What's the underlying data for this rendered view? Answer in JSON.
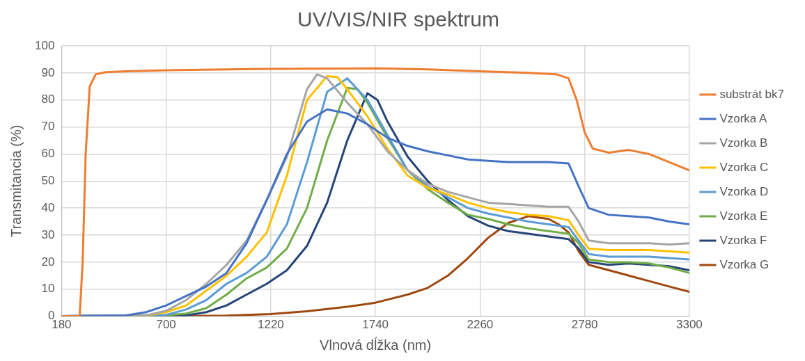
{
  "chart_data": {
    "type": "line",
    "title": "UV/VIS/NIR spektrum",
    "xlabel": "Vlnová dĺžka (nm)",
    "ylabel": "Transmitancia (%)",
    "xlim": [
      180,
      3300
    ],
    "xticks": [
      180,
      700,
      1220,
      1740,
      2260,
      2780,
      3300
    ],
    "ylim": [
      0,
      100
    ],
    "yticks": [
      0,
      10,
      20,
      30,
      40,
      50,
      60,
      70,
      80,
      90,
      100
    ],
    "grid": true,
    "legend": "right",
    "marker": "none",
    "line_style": "solid",
    "series": [
      {
        "name": "substrát bk7",
        "color": "#ed7d31",
        "x": [
          180,
          270,
          285,
          300,
          320,
          350,
          400,
          500,
          700,
          1200,
          1740,
          2000,
          2260,
          2500,
          2640,
          2700,
          2740,
          2780,
          2820,
          2900,
          3000,
          3100,
          3200,
          3300
        ],
        "values": [
          0,
          0,
          20,
          60,
          85,
          89.5,
          90.3,
          90.6,
          91,
          91.5,
          91.7,
          91.3,
          90.6,
          90,
          89.5,
          88,
          80,
          68,
          62,
          60.5,
          61.5,
          60,
          57,
          54
        ]
      },
      {
        "name": "Vzorka A",
        "color": "#4472c4",
        "x": [
          180,
          500,
          600,
          700,
          800,
          900,
          1000,
          1100,
          1200,
          1300,
          1400,
          1500,
          1600,
          1700,
          1800,
          1900,
          2000,
          2100,
          2200,
          2300,
          2400,
          2500,
          2600,
          2700,
          2750,
          2800,
          2900,
          3000,
          3100,
          3200,
          3300
        ],
        "values": [
          0,
          0.3,
          1.5,
          4,
          7.5,
          11,
          16,
          27,
          43,
          60,
          72,
          76.5,
          75,
          71,
          66,
          63,
          61,
          59.5,
          58,
          57.5,
          57,
          57,
          57,
          56.5,
          48,
          40,
          37.5,
          37,
          36.5,
          35,
          34
        ]
      },
      {
        "name": "Vzorka B",
        "color": "#a5a5a5",
        "x": [
          180,
          600,
          700,
          800,
          900,
          1000,
          1100,
          1200,
          1300,
          1400,
          1450,
          1500,
          1600,
          1700,
          1800,
          1900,
          2000,
          2100,
          2200,
          2300,
          2400,
          2500,
          2600,
          2700,
          2750,
          2800,
          2900,
          3000,
          3100,
          3200,
          3300
        ],
        "values": [
          0,
          0.3,
          2,
          6,
          12,
          19,
          28,
          43,
          59,
          84,
          89.5,
          88,
          79,
          71,
          61,
          54,
          49,
          46,
          44,
          42,
          41.5,
          41,
          40.5,
          40.5,
          35,
          28,
          27,
          27,
          27,
          26.5,
          27
        ]
      },
      {
        "name": "Vzorka C",
        "color": "#ffc000",
        "x": [
          180,
          600,
          700,
          800,
          900,
          1000,
          1100,
          1200,
          1300,
          1400,
          1500,
          1550,
          1600,
          1700,
          1800,
          1900,
          2000,
          2100,
          2200,
          2300,
          2400,
          2500,
          2600,
          2700,
          2750,
          2800,
          2900,
          3000,
          3100,
          3200,
          3300
        ],
        "values": [
          0,
          0.2,
          1.5,
          4,
          9.5,
          15,
          22,
          31,
          52,
          80,
          88.8,
          88.5,
          84,
          74,
          62,
          52,
          47.5,
          45,
          42,
          40,
          38.5,
          37.5,
          37,
          35.5,
          30,
          25,
          24.5,
          24.5,
          24.5,
          24,
          23.5
        ]
      },
      {
        "name": "Vzorka D",
        "color": "#5b9bd5",
        "x": [
          180,
          700,
          800,
          900,
          1000,
          1100,
          1200,
          1300,
          1400,
          1500,
          1600,
          1700,
          1800,
          1900,
          2000,
          2100,
          2200,
          2300,
          2400,
          2500,
          2600,
          2700,
          2750,
          2800,
          2900,
          3000,
          3100,
          3200,
          3300
        ],
        "values": [
          0,
          0.5,
          2.5,
          6,
          12,
          16,
          22,
          34,
          57,
          83,
          88,
          80,
          67,
          54,
          48,
          44,
          40,
          38,
          36.5,
          35,
          34,
          33,
          28,
          23,
          22,
          22,
          22,
          21.5,
          21
        ]
      },
      {
        "name": "Vzorka E",
        "color": "#70ad47",
        "x": [
          180,
          700,
          800,
          900,
          1000,
          1100,
          1200,
          1300,
          1400,
          1500,
          1600,
          1650,
          1700,
          1800,
          1900,
          2000,
          2100,
          2200,
          2300,
          2400,
          2500,
          2600,
          2700,
          2750,
          2800,
          2900,
          3000,
          3100,
          3200,
          3300
        ],
        "values": [
          0,
          0.3,
          1,
          3,
          8,
          14,
          18,
          25,
          40,
          65,
          84.5,
          84,
          79,
          66,
          54,
          47,
          42,
          37.5,
          36,
          34,
          32.5,
          31.5,
          30.5,
          27,
          21,
          20,
          20,
          19.5,
          18,
          16
        ]
      },
      {
        "name": "Vzorka F",
        "color": "#264478",
        "x": [
          180,
          800,
          900,
          1000,
          1100,
          1200,
          1300,
          1400,
          1500,
          1600,
          1700,
          1750,
          1800,
          1900,
          2000,
          2100,
          2200,
          2300,
          2400,
          2500,
          2600,
          2700,
          2750,
          2800,
          2900,
          3000,
          3100,
          3200,
          3300
        ],
        "values": [
          0,
          0.3,
          1.5,
          4,
          8,
          12,
          17,
          26,
          42,
          65,
          82.5,
          80,
          72,
          59,
          50,
          43,
          37,
          33.5,
          31.5,
          30.5,
          29.5,
          28.5,
          25,
          20,
          19,
          19.5,
          19,
          18.5,
          17
        ]
      },
      {
        "name": "Vzorka G",
        "color": "#9e480e",
        "x": [
          180,
          700,
          1000,
          1220,
          1400,
          1600,
          1740,
          1900,
          2000,
          2100,
          2200,
          2300,
          2400,
          2500,
          2600,
          2650,
          2700,
          2750,
          2800,
          2900,
          3000,
          3100,
          3200,
          3300
        ],
        "values": [
          0,
          0,
          0.2,
          0.8,
          1.8,
          3.5,
          5,
          8,
          10.5,
          15,
          21.5,
          29,
          34.5,
          37,
          36,
          34,
          31,
          24,
          19,
          17,
          15,
          13,
          11,
          9
        ]
      }
    ]
  }
}
